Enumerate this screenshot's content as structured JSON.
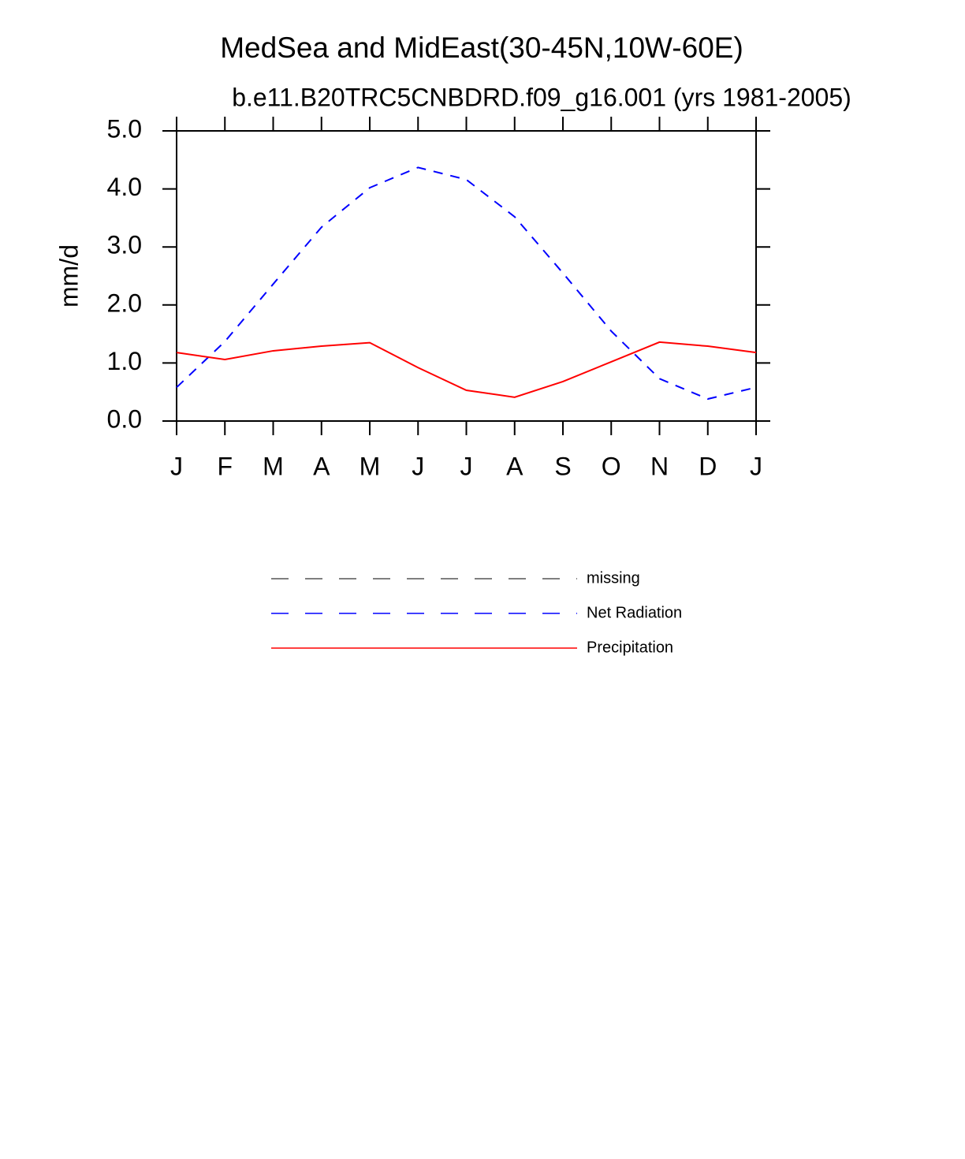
{
  "chart_data": {
    "type": "line",
    "title": "MedSea and MidEast(30-45N,10W-60E)",
    "subtitle": "b.e11.B20TRC5CNBDRD.f09_g16.001 (yrs 1981-2005)",
    "y_label": "mm/d",
    "categories": [
      "J",
      "F",
      "M",
      "A",
      "M",
      "J",
      "J",
      "A",
      "S",
      "O",
      "N",
      "D",
      "J"
    ],
    "ylim": [
      0,
      5
    ],
    "yticks": [
      {
        "value": 0,
        "label": "0.0"
      },
      {
        "value": 1,
        "label": "1.0"
      },
      {
        "value": 2,
        "label": "2.0"
      },
      {
        "value": 3,
        "label": "3.0"
      },
      {
        "value": 4,
        "label": "4.0"
      },
      {
        "value": 5,
        "label": "5.0"
      }
    ],
    "legend": "bottom",
    "series": [
      {
        "name": "missing",
        "color": "#555555",
        "dash": "dashed",
        "values": [
          null,
          null,
          null,
          null,
          null,
          null,
          null,
          null,
          null,
          null,
          null,
          null,
          null
        ]
      },
      {
        "name": "Net Radiation",
        "color": "#0000ff",
        "dash": "dashed",
        "values": [
          0.58,
          1.37,
          2.36,
          3.34,
          4.02,
          4.37,
          4.16,
          3.52,
          2.55,
          1.55,
          0.73,
          0.38,
          0.58
        ]
      },
      {
        "name": "Precipitation",
        "color": "#ff0000",
        "dash": "solid",
        "values": [
          1.18,
          1.06,
          1.21,
          1.29,
          1.35,
          0.92,
          0.53,
          0.41,
          0.68,
          1.02,
          1.36,
          1.29,
          1.18
        ]
      }
    ]
  }
}
